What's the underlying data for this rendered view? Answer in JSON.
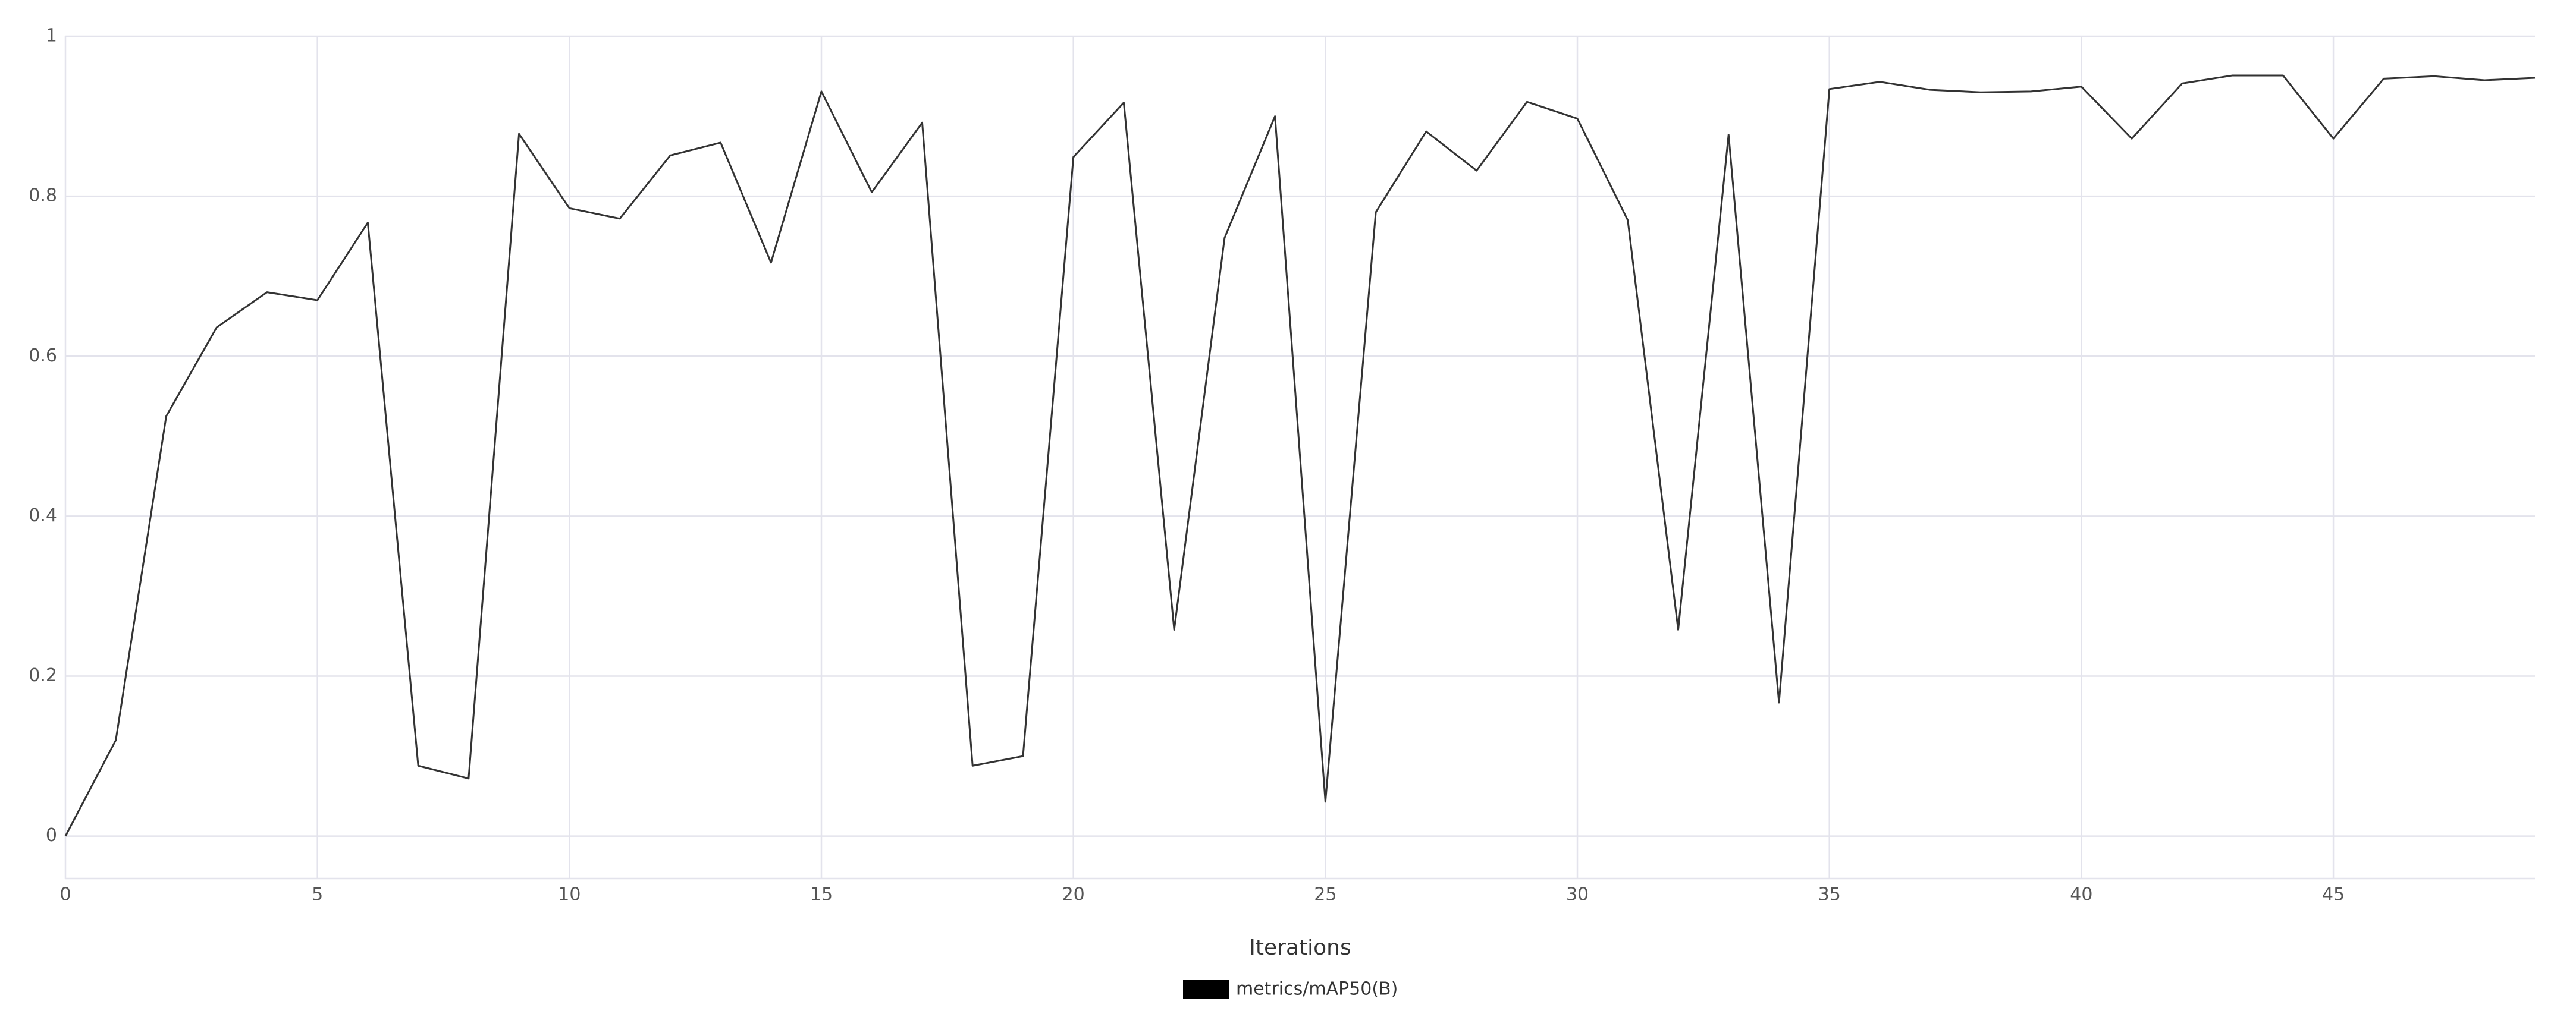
{
  "chart_data": {
    "type": "line",
    "x_label": "Iterations",
    "x": [
      0,
      1,
      2,
      3,
      4,
      5,
      6,
      7,
      8,
      9,
      10,
      11,
      12,
      13,
      14,
      15,
      16,
      17,
      18,
      19,
      20,
      21,
      22,
      23,
      24,
      25,
      26,
      27,
      28,
      29,
      30,
      31,
      32,
      33,
      34,
      35,
      36,
      37,
      38,
      39,
      40,
      41,
      42,
      43,
      44,
      45,
      46,
      47,
      48,
      49
    ],
    "series": [
      {
        "name": "metrics/mAP50(B)",
        "color": "#000000",
        "values": [
          0,
          0.12,
          0.525,
          0.636,
          0.68,
          0.67,
          0.767,
          0.088,
          0.072,
          0.878,
          0.785,
          0.772,
          0.851,
          0.867,
          0.717,
          0.931,
          0.805,
          0.892,
          0.088,
          0.1,
          0.849,
          0.917,
          0.258,
          0.748,
          0.9,
          0.043,
          0.78,
          0.881,
          0.832,
          0.918,
          0.897,
          0.77,
          0.258,
          0.877,
          0.167,
          0.934,
          0.943,
          0.933,
          0.93,
          0.931,
          0.937,
          0.872,
          0.941,
          0.951,
          0.951,
          0.872,
          0.947,
          0.95,
          0.945,
          0.948
        ]
      }
    ],
    "xlim": [
      0,
      49
    ],
    "ylim": [
      -0.053,
      1
    ],
    "xticks": [
      0,
      5,
      10,
      15,
      20,
      25,
      30,
      35,
      40,
      45
    ],
    "yticks": [
      0,
      0.2,
      0.4,
      0.6,
      0.8,
      1
    ],
    "grid": true
  }
}
